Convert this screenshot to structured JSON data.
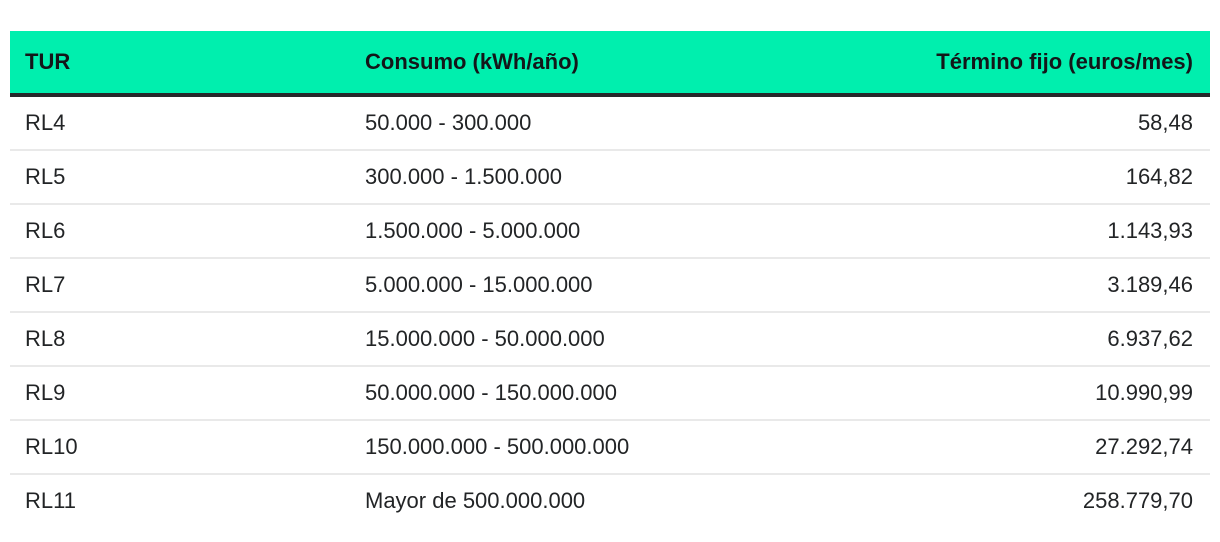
{
  "accent_color": "#00efae",
  "header_underline_color": "#26282a",
  "row_separator_color": "#e9e9e9",
  "table": {
    "columns": [
      {
        "id": "tur",
        "label": "TUR",
        "align": "left"
      },
      {
        "id": "consumo",
        "label": "Consumo (kWh/año)",
        "align": "left"
      },
      {
        "id": "termino-fijo",
        "label": "Término fijo (euros/mes)",
        "align": "right"
      }
    ],
    "rows": [
      [
        "RL4",
        "50.000 - 300.000",
        "58,48"
      ],
      [
        "RL5",
        "300.000 - 1.500.000",
        "164,82"
      ],
      [
        "RL6",
        "1.500.000 - 5.000.000",
        "1.143,93"
      ],
      [
        "RL7",
        "5.000.000 - 15.000.000",
        "3.189,46"
      ],
      [
        "RL8",
        "15.000.000 - 50.000.000",
        "6.937,62"
      ],
      [
        "RL9",
        "50.000.000 - 150.000.000",
        "10.990,99"
      ],
      [
        "RL10",
        "150.000.000 - 500.000.000",
        "27.292,74"
      ],
      [
        "RL11",
        "Mayor de 500.000.000",
        "258.779,70"
      ]
    ]
  },
  "chart_data": {
    "type": "table",
    "title": "",
    "columns": [
      "TUR",
      "Consumo (kWh/año)",
      "Término fijo (euros/mes)"
    ],
    "rows": [
      [
        "RL4",
        "50.000 - 300.000",
        "58,48"
      ],
      [
        "RL5",
        "300.000 - 1.500.000",
        "164,82"
      ],
      [
        "RL6",
        "1.500.000 - 5.000.000",
        "1.143,93"
      ],
      [
        "RL7",
        "5.000.000 - 15.000.000",
        "3.189,46"
      ],
      [
        "RL8",
        "15.000.000 - 50.000.000",
        "6.937,62"
      ],
      [
        "RL9",
        "50.000.000 - 150.000.000",
        "10.990,99"
      ],
      [
        "RL10",
        "150.000.000 - 500.000.000",
        "27.292,74"
      ],
      [
        "RL11",
        "Mayor de 500.000.000",
        "258.779,70"
      ]
    ],
    "termino_fijo_values_numeric": [
      58.48,
      164.82,
      1143.93,
      3189.46,
      6937.62,
      10990.99,
      27292.74,
      258779.7
    ]
  }
}
